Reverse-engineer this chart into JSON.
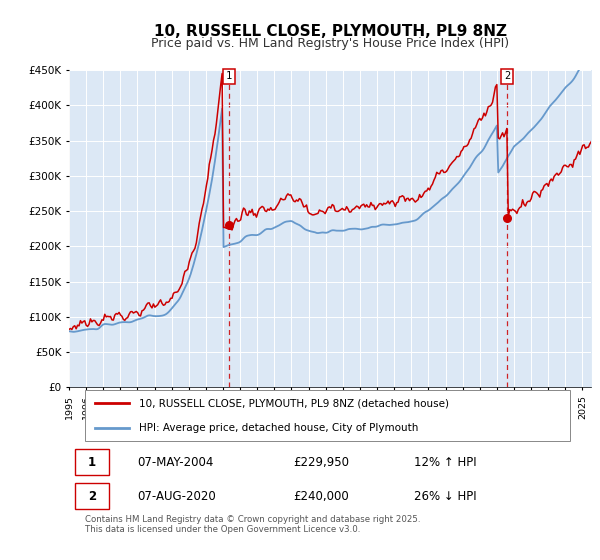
{
  "title": "10, RUSSELL CLOSE, PLYMOUTH, PL9 8NZ",
  "subtitle": "Price paid vs. HM Land Registry's House Price Index (HPI)",
  "xlim_start": 1995.0,
  "xlim_end": 2025.5,
  "ylim": [
    0,
    450000
  ],
  "yticks": [
    0,
    50000,
    100000,
    150000,
    200000,
    250000,
    300000,
    350000,
    400000,
    450000
  ],
  "ytick_labels": [
    "£0",
    "£50K",
    "£100K",
    "£150K",
    "£200K",
    "£250K",
    "£300K",
    "£350K",
    "£400K",
    "£450K"
  ],
  "property_color": "#cc0000",
  "hpi_color": "#6699cc",
  "hpi_fill_color": "#dce8f5",
  "sale1_date": 2004.35,
  "sale1_price": 229950,
  "sale2_date": 2020.6,
  "sale2_price": 240000,
  "legend_property": "10, RUSSELL CLOSE, PLYMOUTH, PL9 8NZ (detached house)",
  "legend_hpi": "HPI: Average price, detached house, City of Plymouth",
  "annotation1_date": "07-MAY-2004",
  "annotation1_price": "£229,950",
  "annotation1_hpi": "12% ↑ HPI",
  "annotation2_date": "07-AUG-2020",
  "annotation2_price": "£240,000",
  "annotation2_hpi": "26% ↓ HPI",
  "footnote": "Contains HM Land Registry data © Crown copyright and database right 2025.\nThis data is licensed under the Open Government Licence v3.0.",
  "background_color": "#dce8f5",
  "title_fontsize": 11,
  "subtitle_fontsize": 9
}
